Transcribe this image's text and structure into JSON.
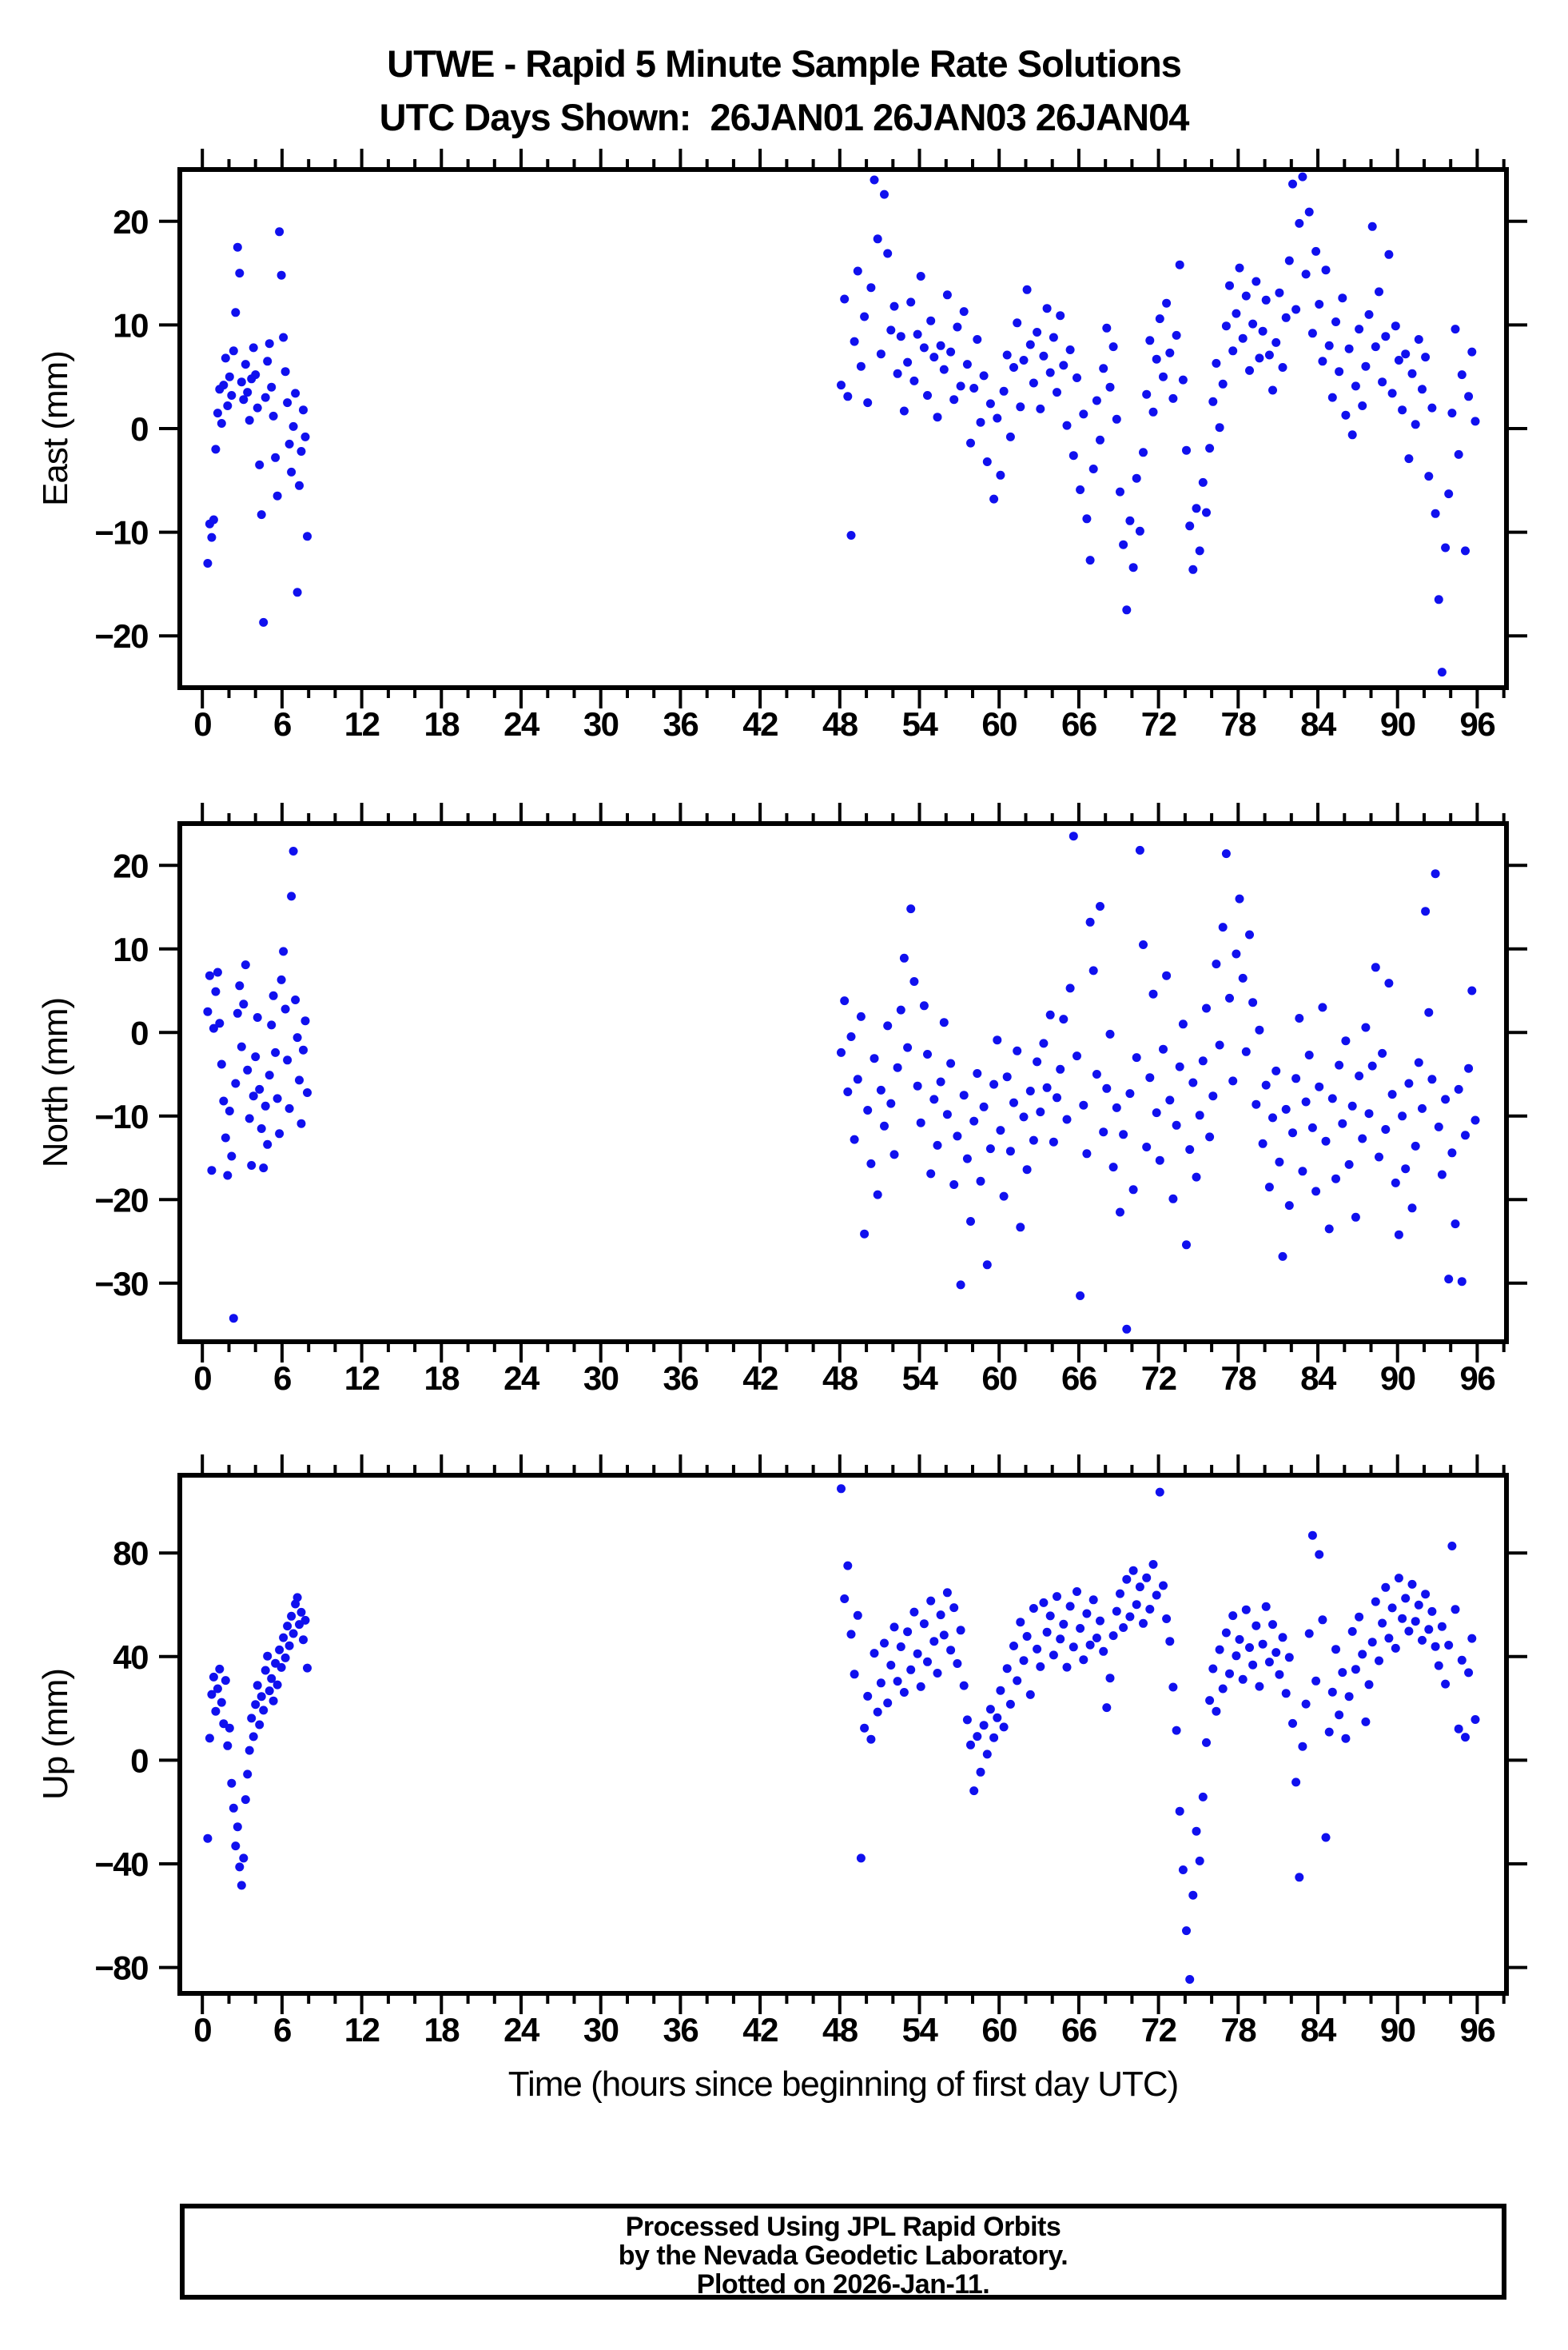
{
  "page": {
    "title_line1": "UTWE - Rapid 5 Minute Sample Rate Solutions",
    "title_line2": "UTC Days Shown:  26JAN01 26JAN03 26JAN04",
    "footer_line1": "Processed Using JPL Rapid Orbits",
    "footer_line2": "by the Nevada Geodetic Laboratory.",
    "footer_line3": "Plotted on 2026-Jan-11.",
    "point_color": "#1010ee"
  },
  "xaxis": {
    "label": "Time (hours since beginning of first day UTC)",
    "lim": [
      -1.7,
      98.2
    ],
    "major_tick_values": [
      0,
      6,
      12,
      18,
      24,
      30,
      36,
      42,
      48,
      54,
      60,
      66,
      72,
      78,
      84,
      90,
      96
    ],
    "minor_step": 2
  },
  "chart_data": [
    {
      "type": "scatter",
      "ylabel": "East (mm)",
      "ylim": [
        -25,
        25
      ],
      "yticks": [
        -20,
        -10,
        0,
        10,
        20
      ],
      "series": [
        {
          "name": "26JAN01",
          "t0": 0.4,
          "dt": 0.15,
          "values": [
            -13,
            -9.2,
            -10.5,
            -8.8,
            -2,
            1.5,
            3.8,
            0.5,
            4.2,
            6.8,
            2.2,
            5,
            3.2,
            7.5,
            11.2,
            17.5,
            15,
            4.5,
            2.8,
            6.2,
            3.5,
            0.8,
            4.8,
            7.8,
            5.2,
            2,
            -3.5,
            -8.3,
            -18.7,
            3,
            6.5,
            8.2,
            4,
            1.2,
            -2.8,
            -6.5,
            19,
            14.8,
            8.8,
            5.5,
            2.5,
            -1.5,
            -4.2,
            0.2,
            3.4,
            -15.8,
            -5.5,
            -2.2,
            1.8,
            -0.8,
            -10.4
          ]
        },
        {
          "name": "26JAN03-26JAN04",
          "t0": 48.1,
          "dt": 0.25,
          "values": [
            4.2,
            12.5,
            3.1,
            -10.3,
            8.4,
            15.2,
            6,
            10.8,
            2.5,
            13.6,
            24,
            18.3,
            7.2,
            22.6,
            16.9,
            9.5,
            11.8,
            5.3,
            8.9,
            1.7,
            6.4,
            12.2,
            4.6,
            9.1,
            14.7,
            7.8,
            3.2,
            10.4,
            6.9,
            1.1,
            8,
            5.7,
            12.9,
            7.4,
            2.8,
            9.8,
            4.1,
            11.3,
            6.2,
            -1.4,
            3.9,
            8.6,
            0.6,
            5.1,
            -3.2,
            2.4,
            -6.8,
            1,
            -4.5,
            3.6,
            7.1,
            -0.8,
            5.9,
            10.2,
            2.1,
            6.6,
            13.4,
            8.1,
            4.4,
            9.3,
            1.9,
            7,
            11.6,
            5.4,
            8.8,
            3.5,
            10.9,
            6.1,
            0.3,
            7.6,
            -2.6,
            4.9,
            -5.9,
            1.4,
            -8.7,
            -12.7,
            -3.9,
            2.7,
            -1.1,
            5.8,
            9.7,
            4,
            7.9,
            0.9,
            -6.1,
            -11.2,
            -17.5,
            -8.9,
            -13.4,
            -4.8,
            -9.9,
            -2.3,
            3.3,
            8.5,
            1.6,
            6.7,
            10.6,
            5,
            12.1,
            7.3,
            2.9,
            9,
            15.8,
            4.7,
            -2.1,
            -9.4,
            -13.6,
            -7.7,
            -11.8,
            -5.2,
            -8.1,
            -1.9,
            2.6,
            6.3,
            0.1,
            4.3,
            9.9,
            13.8,
            7.5,
            11.1,
            15.5,
            8.7,
            12.8,
            5.6,
            10.1,
            14.2,
            6.8,
            9.4,
            12.4,
            7.1,
            3.7,
            8.3,
            13.1,
            5.9,
            10.7,
            16.2,
            23.6,
            11.5,
            19.8,
            24.3,
            14.9,
            20.9,
            9.2,
            17.1,
            12,
            6.5,
            15.3,
            8,
            3,
            10.3,
            5.5,
            12.6,
            1.3,
            7.7,
            -0.6,
            4.1,
            9.6,
            2.2,
            6,
            11,
            19.5,
            7.9,
            13.2,
            4.5,
            8.9,
            16.8,
            3.4,
            9.9,
            6.6,
            1.8,
            7.2,
            -2.9,
            5.3,
            0.4,
            8.6,
            3.8,
            6.9,
            -4.6,
            2,
            -8.2,
            -16.5,
            -23.5,
            -11.5,
            -6.3,
            1.5,
            9.6,
            -2.5,
            5.2,
            -11.8,
            3.1,
            7.4,
            0.7
          ]
        }
      ]
    },
    {
      "type": "scatter",
      "ylabel": "North (mm)",
      "ylim": [
        -37,
        25
      ],
      "yticks": [
        -30,
        -20,
        -10,
        0,
        10,
        20
      ],
      "series": [
        {
          "name": "26JAN01",
          "t0": 0.4,
          "dt": 0.15,
          "values": [
            2.5,
            6.8,
            -16.5,
            0.5,
            4.9,
            7.2,
            1.1,
            -3.8,
            -8.2,
            -12.6,
            -17.1,
            -9.4,
            -14.8,
            -34.2,
            -6.1,
            2.3,
            5.6,
            -1.7,
            3.4,
            8.1,
            -4.5,
            -10.3,
            -15.9,
            -7.6,
            -2.9,
            1.8,
            -6.8,
            -11.5,
            -16.2,
            -8.8,
            -13.4,
            -5.1,
            0.9,
            4.4,
            -2.4,
            -7.9,
            -12.1,
            6.3,
            9.7,
            2.8,
            -3.3,
            -9.1,
            16.3,
            21.7,
            3.9,
            -0.6,
            -5.7,
            -10.9,
            -2.1,
            1.4,
            -7.2
          ]
        },
        {
          "name": "26JAN03-26JAN04",
          "t0": 48.1,
          "dt": 0.25,
          "values": [
            -2.4,
            3.8,
            -7.1,
            -0.5,
            -12.8,
            -5.6,
            1.9,
            -24.1,
            -9.3,
            -15.7,
            -3.1,
            -19.4,
            -6.9,
            -11.2,
            0.8,
            -8.5,
            -14.6,
            -4.2,
            2.7,
            8.9,
            -1.8,
            14.8,
            6.1,
            -6.4,
            -10.8,
            3.2,
            -2.6,
            -16.9,
            -8,
            -13.5,
            -5.9,
            1.2,
            -9.8,
            -3.7,
            -18.2,
            -12.4,
            -30.2,
            -7.5,
            -15.1,
            -22.6,
            -10.6,
            -4.9,
            -17.8,
            -8.9,
            -27.8,
            -13.9,
            -6.2,
            -0.9,
            -11.7,
            -19.6,
            -5.3,
            -14.2,
            -8.4,
            -2.2,
            -23.3,
            -10.1,
            -16.4,
            -7,
            -12.9,
            -3.5,
            -9.5,
            -1.3,
            -6.6,
            2.1,
            -13.1,
            -7.8,
            -4.4,
            1.6,
            -10.4,
            5.3,
            23.5,
            -2.8,
            -31.5,
            -8.7,
            -14.5,
            13.2,
            7.4,
            -5,
            15.1,
            -11.9,
            -6.7,
            -0.2,
            -16.1,
            -9,
            -21.5,
            -12.2,
            -35.5,
            -7.3,
            -18.8,
            -3,
            21.8,
            10.5,
            -13.7,
            -5.4,
            4.6,
            -9.6,
            -15.3,
            -2,
            6.8,
            -8.1,
            -19.9,
            -11.1,
            -4.1,
            1,
            -25.4,
            -14,
            -6,
            -17.3,
            -9.9,
            -3.4,
            2.9,
            -12.5,
            -7.6,
            8.2,
            -1.5,
            12.6,
            21.4,
            4.1,
            -5.8,
            9.4,
            16,
            6.5,
            -2.3,
            11.7,
            3.6,
            -8.6,
            0.3,
            -13.3,
            -6.3,
            -18.5,
            -10.2,
            -4.6,
            -15.5,
            -26.8,
            -9.2,
            -20.7,
            -12,
            -5.5,
            1.7,
            -16.6,
            -8.3,
            -2.7,
            -11.4,
            -19,
            -6.5,
            3,
            -13,
            -23.5,
            -7.9,
            -17.5,
            -3.9,
            -10.9,
            -1,
            -15.8,
            -8.8,
            -22.1,
            -5.2,
            -12.7,
            0.6,
            -9.7,
            -4,
            7.8,
            -14.9,
            -2.5,
            -11.6,
            5.9,
            -7.4,
            -18,
            -24.2,
            -10,
            -16.3,
            -6.1,
            -21,
            -13.6,
            -3.6,
            -9.1,
            14.5,
            2.4,
            -5.6,
            19,
            -11.3,
            -17,
            -8,
            -29.5,
            -14.4,
            -22.9,
            -6.8,
            -29.8,
            -12.3,
            -4.3,
            5,
            -10.5
          ]
        }
      ]
    },
    {
      "type": "scatter",
      "ylabel": "Up (mm)",
      "ylim": [
        -90,
        110
      ],
      "yticks": [
        -80,
        -40,
        0,
        40,
        80
      ],
      "series": [
        {
          "name": "26JAN01",
          "t0": 0.4,
          "dt": 0.15,
          "values": [
            -30.2,
            8.5,
            25.4,
            32.1,
            18.9,
            27.6,
            35.2,
            22.3,
            14.1,
            30.8,
            5.6,
            12.4,
            -8.9,
            -18.5,
            -33.1,
            -25.7,
            -41.2,
            -48.3,
            -37.8,
            -15.2,
            -5.4,
            3.8,
            16.2,
            9.1,
            21.5,
            28.9,
            13.7,
            24.6,
            19.3,
            34.7,
            40.2,
            26.8,
            31.5,
            22.9,
            37.4,
            29.1,
            42.6,
            35.8,
            47.3,
            39.5,
            51.8,
            44.2,
            55.6,
            48.9,
            60.3,
            62.8,
            52.4,
            57.1,
            46.5,
            54,
            35.6
          ]
        },
        {
          "name": "26JAN03-26JAN04",
          "t0": 48.1,
          "dt": 0.25,
          "values": [
            104.8,
            62.3,
            75.1,
            48.6,
            33.2,
            55.9,
            -37.8,
            12.4,
            24.7,
            8.1,
            41.3,
            18.6,
            29.8,
            45.2,
            22.1,
            36.7,
            51.4,
            30.5,
            43.8,
            26.2,
            49.6,
            34.9,
            57.2,
            41.1,
            28.4,
            52.7,
            38,
            61.5,
            45.9,
            33.6,
            56.1,
            48.3,
            64.7,
            42.5,
            58.9,
            37.3,
            50.2,
            28.8,
            15.6,
            5.9,
            -11.8,
            9.2,
            -4.6,
            13.5,
            2.3,
            19.7,
            8.7,
            16.4,
            26.9,
            12.8,
            35.4,
            21.6,
            44.1,
            30.7,
            53.3,
            38.5,
            47.8,
            25.3,
            58.6,
            42.9,
            36.1,
            60.8,
            49.4,
            55.7,
            40.6,
            63.2,
            46.8,
            52.5,
            35.9,
            59.4,
            43.7,
            65.1,
            50.9,
            38.8,
            56.6,
            44.5,
            61.9,
            47.2,
            53.8,
            42,
            20.3,
            31.7,
            48.1,
            57.5,
            64.3,
            51.2,
            69.8,
            55.4,
            73.2,
            60.1,
            66.9,
            52.8,
            70.4,
            58.3,
            75.6,
            63.7,
            103.5,
            67.4,
            54.6,
            45.9,
            28.2,
            11.5,
            -19.7,
            -42.3,
            -65.8,
            -84.6,
            -52.1,
            -27.4,
            -38.9,
            -14.2,
            6.8,
            23.1,
            35.3,
            18.9,
            42.7,
            27.6,
            49.2,
            33.4,
            55.8,
            40.3,
            46.6,
            31.2,
            58.1,
            43.5,
            36.8,
            51.9,
            28.5,
            44.8,
            59.3,
            37.9,
            52.4,
            41.6,
            33.1,
            47.4,
            25.8,
            39.7,
            14.2,
            -8.5,
            -45.2,
            5.3,
            21.7,
            48.9,
            86.8,
            30.6,
            79.4,
            54.2,
            -29.8,
            10.9,
            26.3,
            42.8,
            17.5,
            33.9,
            8.4,
            24.6,
            49.7,
            35.1,
            55.3,
            40.9,
            14.8,
            29.2,
            45.6,
            61.2,
            38.4,
            52.9,
            66.7,
            47.1,
            58.8,
            43.2,
            70.3,
            54.7,
            62.5,
            49.8,
            67.9,
            53.6,
            59.9,
            46.3,
            64.1,
            50.5,
            57.4,
            43.9,
            36.5,
            51.6,
            29.4,
            44.4,
            82.7,
            58.2,
            12.1,
            38.6,
            8.9,
            33.8,
            47,
            15.7
          ]
        }
      ]
    }
  ]
}
